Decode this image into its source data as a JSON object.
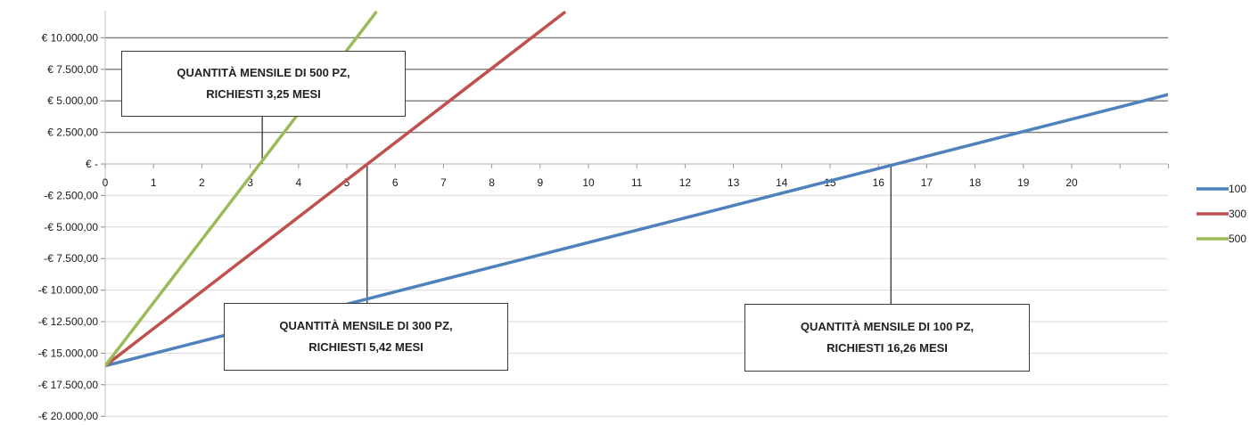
{
  "chart_data": {
    "type": "line",
    "x": [
      0,
      23
    ],
    "xticks": [
      "0",
      "1",
      "2",
      "3",
      "4",
      "5",
      "6",
      "7",
      "8",
      "9",
      "10",
      "11",
      "12",
      "13",
      "14",
      "15",
      "16",
      "17",
      "18",
      "19",
      "20"
    ],
    "yticks": [
      {
        "value": 10000,
        "label": "€ 10.000,00"
      },
      {
        "value": 7500,
        "label": "€ 7.500,00"
      },
      {
        "value": 5000,
        "label": "€ 5.000,00"
      },
      {
        "value": 2500,
        "label": "€ 2.500,00"
      },
      {
        "value": 0,
        "label": "€ -"
      },
      {
        "value": -2500,
        "label": "-€ 2.500,00"
      },
      {
        "value": -5000,
        "label": "-€ 5.000,00"
      },
      {
        "value": -7500,
        "label": "-€ 7.500,00"
      },
      {
        "value": -10000,
        "label": "-€ 10.000,00"
      },
      {
        "value": -12500,
        "label": "-€ 12.500,00"
      },
      {
        "value": -15000,
        "label": "-€ 15.000,00"
      },
      {
        "value": -17500,
        "label": "-€ 17.500,00"
      },
      {
        "value": -20000,
        "label": "-€ 20.000,00"
      }
    ],
    "ylim": [
      -20000,
      12000
    ],
    "xlim": [
      0,
      22
    ],
    "series": [
      {
        "name": "100",
        "color": "#4f81bd",
        "points": [
          [
            0,
            -16000
          ],
          [
            22,
            5500
          ]
        ]
      },
      {
        "name": "300",
        "color": "#c0504d",
        "points": [
          [
            0,
            -16000
          ],
          [
            9.5,
            12000
          ]
        ]
      },
      {
        "name": "500",
        "color": "#9bbb59",
        "points": [
          [
            0,
            -16000
          ],
          [
            5.6,
            12000
          ]
        ]
      }
    ],
    "legend_position": "right",
    "grid": "horizontal",
    "annotations": [
      {
        "id": "500",
        "line1": "QUANTITÀ MENSILE DI 500 PZ,",
        "line2": "RICHIESTI 3,25 MESI",
        "x": 3.25
      },
      {
        "id": "300",
        "line1": "QUANTITÀ MENSILE DI 300 PZ,",
        "line2": "RICHIESTI 5,42 MESI",
        "x": 5.42
      },
      {
        "id": "100",
        "line1": "QUANTITÀ MENSILE DI 100 PZ,",
        "line2": "RICHIESTI 16,26 MESI",
        "x": 16.26
      }
    ]
  }
}
